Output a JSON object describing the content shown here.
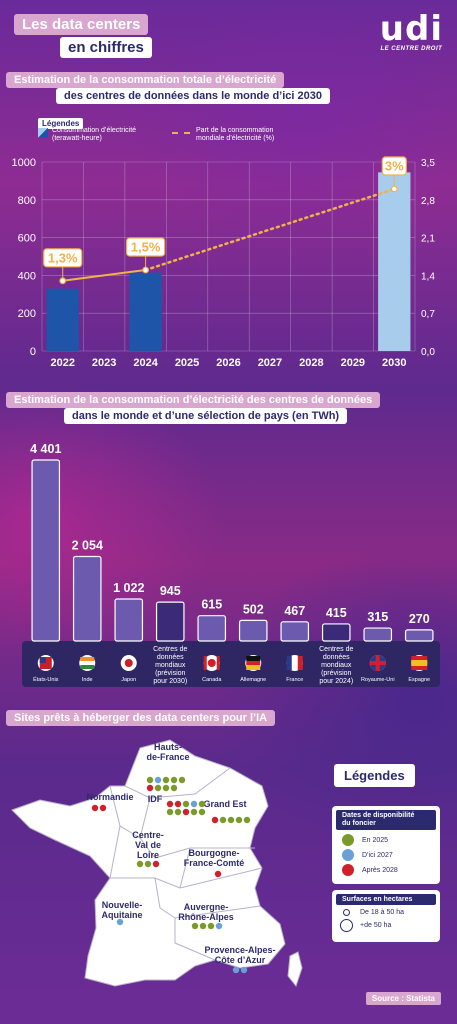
{
  "header": {
    "title_line1": "Les data centers",
    "title_line2": "en chiffres",
    "logo_text": "udi",
    "logo_sub": "LE CENTRE DROIT"
  },
  "section1": {
    "title_line1": "Estimation de la consommation totale d’électricité",
    "title_line2": "des centres de données dans le monde d’ici 2030",
    "legend_label": "Légendes",
    "legend_bar_line1": "Consommation d’électricité",
    "legend_bar_line2": "(terawatt-heure)",
    "legend_line_line1": "Part de la consommation",
    "legend_line_line2": "mondiale d’électricité (%)"
  },
  "section2": {
    "title_line1": "Estimation de la consommation d’électricité des centres de données",
    "title_line2": "dans le monde et d’une sélection de pays (en TWh)"
  },
  "section3": {
    "title": "Sites prêts à héberger des data centers pour l’IA",
    "legend_title": "Légendes",
    "dates_title_line1": "Dates de disponibilité",
    "dates_title_line2": "du foncier",
    "dates": [
      {
        "label": "En 2025",
        "color": "#7a9a2a"
      },
      {
        "label": "D’ici 2027",
        "color": "#6aa0d8"
      },
      {
        "label": "Après 2028",
        "color": "#d0202a"
      }
    ],
    "sizes_title": "Surfaces en hectares",
    "sizes": [
      {
        "label": "De 18 à 50 ha"
      },
      {
        "label": "+de 50 ha"
      }
    ],
    "regions": [
      {
        "name_lines": [
          "Hauts-",
          "de-France"
        ],
        "dots": [
          "#7a9a2a",
          "#6aa0d8",
          "#7a9a2a",
          "#7a9a2a",
          "#7a9a2a",
          "#d0202a",
          "#7a9a2a",
          "#7a9a2a",
          "#7a9a2a"
        ]
      },
      {
        "name_lines": [
          "Normandie"
        ],
        "dots": [
          "#d0202a",
          "#d0202a"
        ]
      },
      {
        "name_lines": [
          "IDF"
        ],
        "dots": [
          "#d0202a",
          "#d0202a",
          "#7a9a2a",
          "#6aa0d8",
          "#7a9a2a",
          "#7a9a2a",
          "#7a9a2a",
          "#d0202a",
          "#7a9a2a",
          "#7a9a2a"
        ]
      },
      {
        "name_lines": [
          "Grand Est"
        ],
        "dots": [
          "#d0202a",
          "#7a9a2a",
          "#7a9a2a",
          "#7a9a2a",
          "#7a9a2a"
        ]
      },
      {
        "name_lines": [
          "Centre-",
          "Val de",
          "Loire"
        ],
        "dots": [
          "#7a9a2a",
          "#7a9a2a",
          "#d0202a"
        ]
      },
      {
        "name_lines": [
          "Bourgogne-",
          "France-Comté"
        ],
        "dots": [
          "#d0202a"
        ]
      },
      {
        "name_lines": [
          "Nouvelle-",
          "Aquitaine"
        ],
        "dots": [
          "#6aa0d8"
        ]
      },
      {
        "name_lines": [
          "Auvergne-",
          "Rhône-Alpes"
        ],
        "dots": [
          "#7a9a2a",
          "#7a9a2a",
          "#7a9a2a",
          "#6aa0d8"
        ]
      },
      {
        "name_lines": [
          "Provence-Alpes-",
          "Côte d’Azur"
        ],
        "dots": [
          "#6aa0d8",
          "#6aa0d8"
        ]
      }
    ]
  },
  "source": "Source : Statista",
  "chart_data": [
    {
      "type": "bar",
      "categories": [
        "2022",
        "2023",
        "2024",
        "2025",
        "2026",
        "2027",
        "2028",
        "2029",
        "2030"
      ],
      "series": [
        {
          "name": "Consommation d’électricité (terawatt-heure)",
          "values": [
            330,
            null,
            415,
            null,
            null,
            null,
            null,
            null,
            945
          ]
        },
        {
          "name": "Part de la consommation mondiale d’électricité (%)",
          "type": "line",
          "values": [
            1.3,
            null,
            1.5,
            null,
            null,
            null,
            null,
            null,
            3.0
          ]
        }
      ],
      "point_labels": {
        "2022": "1,3%",
        "2024": "1,5%",
        "2030": "3%"
      },
      "ylim": [
        0,
        1000
      ],
      "yticks": [
        "0",
        "200",
        "400",
        "600",
        "800",
        "1000"
      ],
      "y2lim": [
        0,
        3.5
      ],
      "y2ticks": [
        "0,0",
        "0,7",
        "1,4",
        "2,1",
        "2,8",
        "3,5"
      ],
      "colors": {
        "bars": "#1e55a8",
        "bar_2030": "#a8ccec",
        "line": "#f2b24a"
      }
    },
    {
      "type": "bar",
      "categories": [
        "États-Unis",
        "Inde",
        "Japon",
        "Centres de données mondiaux (prévision pour 2030)",
        "Canada",
        "Allemagne",
        "France",
        "Centres de données mondiaux (prévision pour 2024)",
        "Royaume-Uni",
        "Espagne"
      ],
      "values": [
        4401,
        2054,
        1022,
        945,
        615,
        502,
        467,
        415,
        315,
        270
      ],
      "value_labels": [
        "4 401",
        "2 054",
        "1 022",
        "945",
        "615",
        "502",
        "467",
        "415",
        "315",
        "270"
      ],
      "category_labels": [
        [
          "États-Unis"
        ],
        [
          "Inde"
        ],
        [
          "Japon"
        ],
        [
          "Centres de",
          "données",
          "mondiaux",
          "(prévision",
          "pour 2030)"
        ],
        [
          "Canada"
        ],
        [
          "Allemagne"
        ],
        [
          "France"
        ],
        [
          "Centres de",
          "données",
          "mondiaux",
          "(prévision",
          "pour 2024)"
        ],
        [
          "Royaume-Uni"
        ],
        [
          "Espagne"
        ]
      ],
      "flags": [
        "us-flag-icon",
        "in-flag-icon",
        "jp-flag-icon",
        null,
        "ca-flag-icon",
        "de-flag-icon",
        "fr-flag-icon",
        null,
        "uk-flag-icon",
        "es-flag-icon"
      ],
      "colors": {
        "country": "#6c5aae",
        "world": "#3a2a78"
      }
    }
  ]
}
